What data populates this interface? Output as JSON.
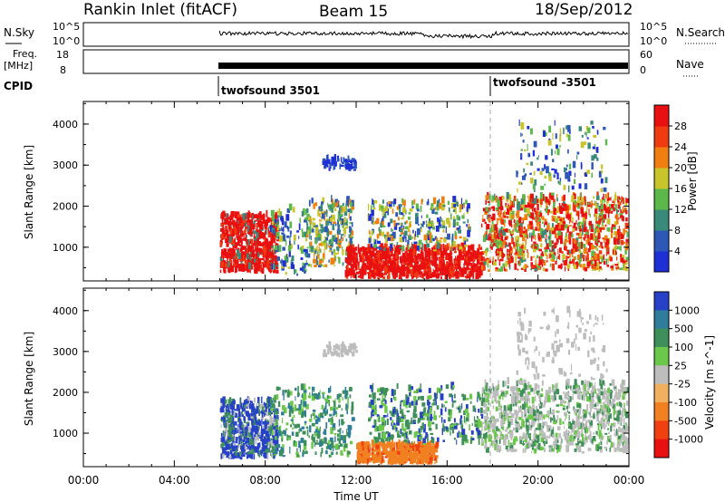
{
  "header": {
    "station": "Rankin Inlet (fitACF)",
    "beam": "Beam 15",
    "date": "18/Sep/2012"
  },
  "noise_panel": {
    "left_label": "N.Sky",
    "right_label": "N.Search",
    "left_ticks": [
      "10^5",
      "10^0"
    ],
    "right_ticks": [
      "10^5",
      "10^0"
    ]
  },
  "freq_panel": {
    "left_label_1": "Freq.",
    "left_label_2": "[MHz]",
    "right_label": "Nave",
    "left_ticks": [
      "18",
      "8"
    ],
    "right_ticks": [
      "60",
      "0"
    ]
  },
  "cpid_panel": {
    "label": "CPID",
    "programs": [
      {
        "name": "twofsound 3501",
        "start_hour": 6.0
      },
      {
        "name": "twofsound -3501",
        "start_hour": 18.0
      }
    ]
  },
  "chart_data": [
    {
      "type": "heatmap",
      "name": "power",
      "xlabel": "",
      "ylabel": "Slant Range [km]",
      "x_range_hours": [
        0,
        24
      ],
      "ylim": [
        180,
        4550
      ],
      "yticks": [
        1000,
        2000,
        3000,
        4000
      ],
      "colorbar": {
        "label": "Power [dB]",
        "ticks": [
          "4",
          "8",
          "12",
          "16",
          "20",
          "24",
          "28"
        ],
        "colors": [
          "#1f2fd6",
          "#2e58b8",
          "#3a8a7a",
          "#5cb84a",
          "#c8c42a",
          "#f07f10",
          "#f03a10",
          "#e81010"
        ]
      }
    },
    {
      "type": "heatmap",
      "name": "velocity",
      "xlabel": "Time UT",
      "ylabel": "Slant Range [km]",
      "x_range_hours": [
        0,
        24
      ],
      "ylim": [
        180,
        4550
      ],
      "yticks": [
        1000,
        2000,
        3000,
        4000
      ],
      "xticks": [
        "00:00",
        "04:00",
        "08:00",
        "12:00",
        "16:00",
        "20:00",
        "00:00"
      ],
      "colorbar": {
        "label": "Velocity [m s^-1]",
        "ticks": [
          "1000",
          "500",
          "100",
          "25",
          "-25",
          "-100",
          "-500",
          "-1000"
        ],
        "colors": [
          "#2640c8",
          "#2f7d9a",
          "#3f8f5a",
          "#6cc84a",
          "#bdbdbd",
          "#f0b060",
          "#f08020",
          "#f04010",
          "#e81010"
        ]
      }
    }
  ]
}
